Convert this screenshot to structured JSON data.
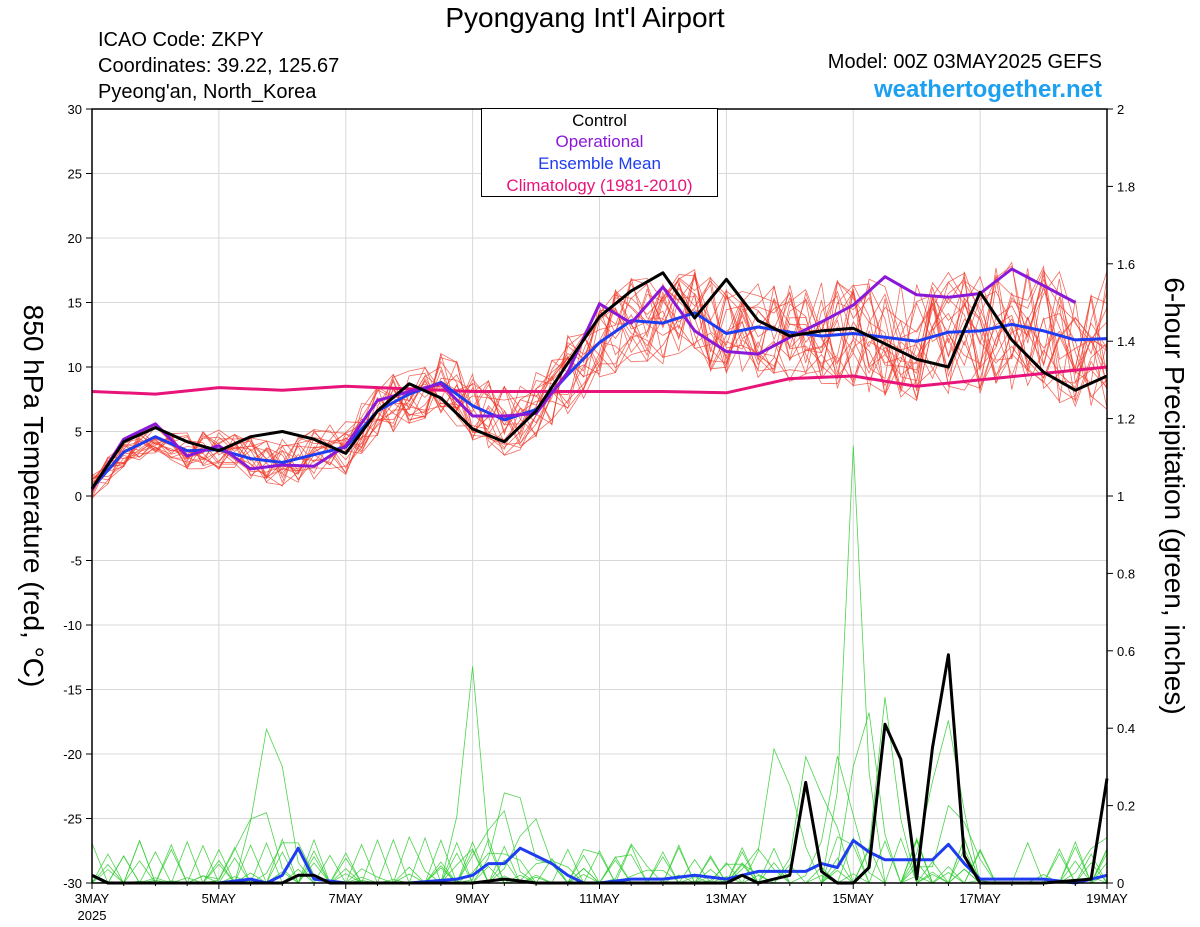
{
  "header": {
    "title": "Pyongyang Int'l Airport",
    "icao": "ICAO Code: ZKPY",
    "coords": "Coordinates: 39.22, 125.67",
    "region": "Pyeong'an, North_Korea",
    "model": "Model: 00Z 03MAY2025 GEFS",
    "site": "weathertogether.net"
  },
  "colors": {
    "control": "#000000",
    "operational": "#8a18d8",
    "ensemble_mean": "#1e3cf0",
    "climatology": "#e8147a",
    "members_temp": "#f03a2a",
    "members_precip": "#2ecc2e",
    "site": "#1ea0f0"
  },
  "chart_data": {
    "type": "line",
    "title": "Pyongyang Int'l Airport",
    "ylabel": "850 hPa Temperature (red, °C)",
    "y2label": "6-hour Precipitation (green, inches)",
    "ylim": [
      -30,
      30
    ],
    "y2lim": [
      0,
      2
    ],
    "xlim": [
      0,
      16
    ],
    "yticks": [
      "30",
      "25",
      "20",
      "15",
      "10",
      "5",
      "0",
      "-5",
      "-10",
      "-15",
      "-20",
      "-25",
      "-30"
    ],
    "y2ticks": [
      "2",
      "1.8",
      "1.6",
      "1.4",
      "1.2",
      "1",
      "0.8",
      "0.6",
      "0.4",
      "0.2",
      "0"
    ],
    "xticks": [
      {
        "x": 0,
        "label": "3MAY",
        "sub": "2025"
      },
      {
        "x": 2,
        "label": "5MAY",
        "sub": ""
      },
      {
        "x": 4,
        "label": "7MAY",
        "sub": ""
      },
      {
        "x": 6,
        "label": "9MAY",
        "sub": ""
      },
      {
        "x": 8,
        "label": "11MAY",
        "sub": ""
      },
      {
        "x": 10,
        "label": "13MAY",
        "sub": ""
      },
      {
        "x": 12,
        "label": "15MAY",
        "sub": ""
      },
      {
        "x": 14,
        "label": "17MAY",
        "sub": ""
      },
      {
        "x": 16,
        "label": "19MAY",
        "sub": ""
      }
    ],
    "legend": [
      "Control",
      "Operational",
      "Ensemble Mean",
      "Climatology (1981-2010)"
    ],
    "legend_position": "top-center",
    "grid": true,
    "series": [
      {
        "name": "Control",
        "axis": "temp",
        "points": [
          [
            0,
            0.6
          ],
          [
            0.5,
            4.2
          ],
          [
            1,
            5.3
          ],
          [
            1.5,
            4.2
          ],
          [
            2,
            3.5
          ],
          [
            2.5,
            4.6
          ],
          [
            3,
            5.0
          ],
          [
            3.5,
            4.4
          ],
          [
            4,
            3.3
          ],
          [
            4.5,
            6.6
          ],
          [
            5,
            8.7
          ],
          [
            5.5,
            7.6
          ],
          [
            6,
            5.2
          ],
          [
            6.5,
            4.2
          ],
          [
            7,
            6.6
          ],
          [
            7.5,
            10.3
          ],
          [
            8,
            13.9
          ],
          [
            8.5,
            15.9
          ],
          [
            9,
            17.3
          ],
          [
            9.5,
            13.8
          ],
          [
            10,
            16.8
          ],
          [
            10.5,
            13.6
          ],
          [
            11,
            12.4
          ],
          [
            11.5,
            12.8
          ],
          [
            12,
            13.0
          ],
          [
            12.5,
            11.8
          ],
          [
            13,
            10.6
          ],
          [
            13.5,
            10.0
          ],
          [
            14,
            15.8
          ],
          [
            14.5,
            12.1
          ],
          [
            15,
            9.6
          ],
          [
            15.5,
            8.2
          ],
          [
            16,
            9.3
          ]
        ]
      },
      {
        "name": "Operational",
        "axis": "temp",
        "points": [
          [
            0,
            0.5
          ],
          [
            0.5,
            4.4
          ],
          [
            1,
            5.6
          ],
          [
            1.5,
            3.1
          ],
          [
            2,
            3.9
          ],
          [
            2.5,
            2.1
          ],
          [
            3,
            2.4
          ],
          [
            3.5,
            2.3
          ],
          [
            4,
            3.9
          ],
          [
            4.5,
            7.4
          ],
          [
            5,
            8.1
          ],
          [
            5.5,
            8.7
          ],
          [
            6,
            6.2
          ],
          [
            6.5,
            6.2
          ],
          [
            7,
            6.4
          ],
          [
            7.5,
            9.6
          ],
          [
            8,
            14.9
          ],
          [
            8.5,
            13.4
          ],
          [
            9,
            16.2
          ],
          [
            9.5,
            12.8
          ],
          [
            10,
            11.2
          ],
          [
            10.5,
            11.0
          ],
          [
            11,
            12.3
          ],
          [
            11.5,
            13.5
          ],
          [
            12,
            14.8
          ],
          [
            12.5,
            17.0
          ],
          [
            13,
            15.6
          ],
          [
            13.5,
            15.4
          ],
          [
            14,
            15.7
          ],
          [
            14.5,
            17.6
          ],
          [
            15,
            16.3
          ],
          [
            15.5,
            15.0
          ]
        ]
      },
      {
        "name": "Ensemble Mean",
        "axis": "temp",
        "points": [
          [
            0,
            0.6
          ],
          [
            0.5,
            3.4
          ],
          [
            1,
            4.6
          ],
          [
            1.5,
            3.5
          ],
          [
            2,
            3.6
          ],
          [
            2.5,
            2.9
          ],
          [
            3,
            2.6
          ],
          [
            3.5,
            3.2
          ],
          [
            4,
            3.8
          ],
          [
            4.5,
            6.6
          ],
          [
            5,
            7.9
          ],
          [
            5.5,
            8.8
          ],
          [
            6,
            7.0
          ],
          [
            6.5,
            5.9
          ],
          [
            7,
            6.7
          ],
          [
            7.5,
            9.4
          ],
          [
            8,
            11.9
          ],
          [
            8.5,
            13.6
          ],
          [
            9,
            13.4
          ],
          [
            9.5,
            14.2
          ],
          [
            10,
            12.6
          ],
          [
            10.5,
            13.1
          ],
          [
            11,
            12.7
          ],
          [
            11.5,
            12.4
          ],
          [
            12,
            12.6
          ],
          [
            12.5,
            12.3
          ],
          [
            13,
            12.0
          ],
          [
            13.5,
            12.7
          ],
          [
            14,
            12.8
          ],
          [
            14.5,
            13.3
          ],
          [
            15,
            12.8
          ],
          [
            15.5,
            12.1
          ],
          [
            16,
            12.2
          ]
        ]
      },
      {
        "name": "Climatology (1981-2010)",
        "axis": "temp",
        "points": [
          [
            0,
            8.1
          ],
          [
            1,
            7.9
          ],
          [
            2,
            8.4
          ],
          [
            3,
            8.2
          ],
          [
            4,
            8.5
          ],
          [
            5,
            8.3
          ],
          [
            6,
            8.1
          ],
          [
            7,
            8.1
          ],
          [
            8,
            8.1
          ],
          [
            9,
            8.1
          ],
          [
            10,
            8.0
          ],
          [
            11,
            9.1
          ],
          [
            12,
            9.3
          ],
          [
            13,
            8.5
          ],
          [
            14,
            9.0
          ],
          [
            15,
            9.5
          ],
          [
            16,
            10.0
          ]
        ]
      },
      {
        "name": "Control precip",
        "axis": "precip",
        "points": [
          [
            0,
            0.02
          ],
          [
            0.25,
            0
          ],
          [
            3,
            0
          ],
          [
            3.25,
            0.02
          ],
          [
            3.5,
            0.02
          ],
          [
            3.75,
            0
          ],
          [
            6,
            0
          ],
          [
            6.5,
            0.01
          ],
          [
            7,
            0
          ],
          [
            10,
            0
          ],
          [
            10.25,
            0.02
          ],
          [
            10.5,
            0
          ],
          [
            10.75,
            0.01
          ],
          [
            11,
            0.02
          ],
          [
            11.25,
            0.26
          ],
          [
            11.5,
            0.03
          ],
          [
            11.75,
            0
          ],
          [
            12,
            0
          ],
          [
            12.25,
            0.04
          ],
          [
            12.5,
            0.41
          ],
          [
            12.75,
            0.32
          ],
          [
            13,
            0.01
          ],
          [
            13.25,
            0.35
          ],
          [
            13.5,
            0.59
          ],
          [
            13.75,
            0.07
          ],
          [
            14,
            0
          ],
          [
            15,
            0
          ],
          [
            15.75,
            0.01
          ],
          [
            16,
            0.27
          ]
        ]
      },
      {
        "name": "Ensemble Mean precip",
        "axis": "precip",
        "points": [
          [
            0,
            0.02
          ],
          [
            0.25,
            0
          ],
          [
            2,
            0
          ],
          [
            2.5,
            0.01
          ],
          [
            2.75,
            0
          ],
          [
            3,
            0.02
          ],
          [
            3.25,
            0.09
          ],
          [
            3.5,
            0.01
          ],
          [
            4,
            0
          ],
          [
            5,
            0
          ],
          [
            5.75,
            0.01
          ],
          [
            6,
            0.02
          ],
          [
            6.25,
            0.05
          ],
          [
            6.5,
            0.05
          ],
          [
            6.75,
            0.09
          ],
          [
            7,
            0.07
          ],
          [
            7.25,
            0.05
          ],
          [
            7.5,
            0.02
          ],
          [
            7.75,
            0
          ],
          [
            8,
            0
          ],
          [
            8.5,
            0.01
          ],
          [
            9,
            0.01
          ],
          [
            9.5,
            0.02
          ],
          [
            10,
            0.01
          ],
          [
            10.5,
            0.03
          ],
          [
            11,
            0.03
          ],
          [
            11.25,
            0.03
          ],
          [
            11.5,
            0.05
          ],
          [
            11.75,
            0.04
          ],
          [
            12,
            0.11
          ],
          [
            12.25,
            0.08
          ],
          [
            12.5,
            0.06
          ],
          [
            12.75,
            0.06
          ],
          [
            13,
            0.06
          ],
          [
            13.25,
            0.06
          ],
          [
            13.5,
            0.1
          ],
          [
            13.75,
            0.05
          ],
          [
            14,
            0.01
          ],
          [
            14.5,
            0.01
          ],
          [
            15,
            0.01
          ],
          [
            15.5,
            0
          ],
          [
            16,
            0.02
          ]
        ]
      }
    ]
  }
}
